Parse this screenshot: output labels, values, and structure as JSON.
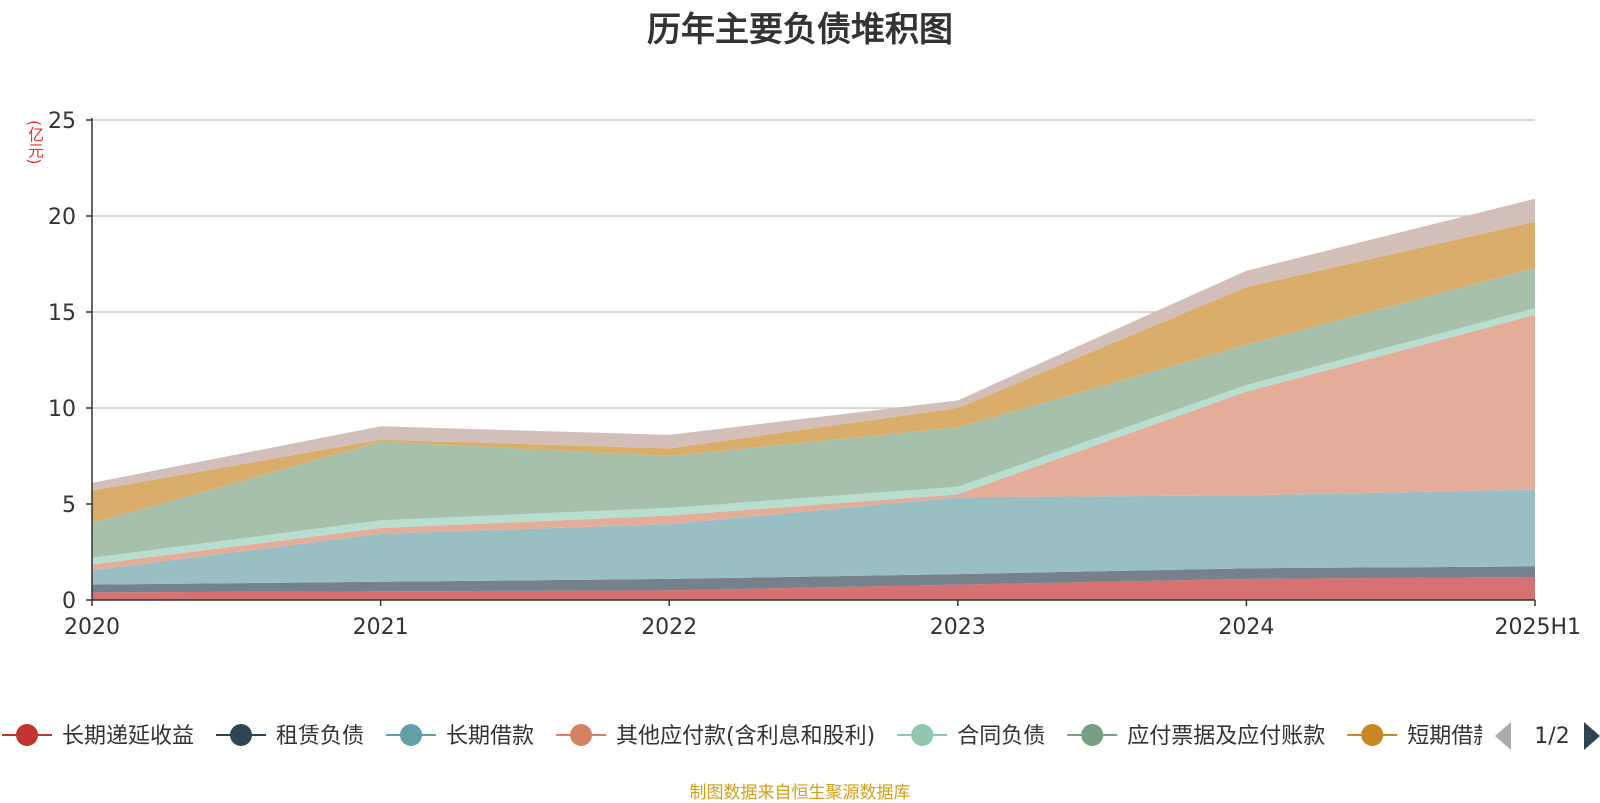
{
  "chart_data": {
    "type": "area",
    "stacked": true,
    "title": "历年主要负债堆积图",
    "ylabel": "(亿元)",
    "xlabel": "",
    "ylim": [
      0,
      25
    ],
    "yticks": [
      0,
      5,
      10,
      15,
      20,
      25
    ],
    "grid": true,
    "categories": [
      "2020",
      "2021",
      "2022",
      "2023",
      "2024",
      "2025H1"
    ],
    "series": [
      {
        "name": "长期递延收益",
        "color": "#c23531",
        "fill": "#d46a6a",
        "values": [
          0.4,
          0.45,
          0.5,
          0.8,
          1.1,
          1.2
        ]
      },
      {
        "name": "租赁负债",
        "color": "#2f4554",
        "fill": "#6e7a85",
        "values": [
          0.4,
          0.5,
          0.6,
          0.55,
          0.55,
          0.55
        ]
      },
      {
        "name": "长期借款",
        "color": "#61a0a8",
        "fill": "#93bcc2",
        "values": [
          0.75,
          2.5,
          2.85,
          4.0,
          3.8,
          4.0
        ]
      },
      {
        "name": "其他应付款(含利息和股利)",
        "color": "#d48265",
        "fill": "#e3a995",
        "values": [
          0.3,
          0.3,
          0.45,
          0.15,
          5.4,
          9.1
        ]
      },
      {
        "name": "合同负债",
        "color": "#91c7ae",
        "fill": "#b3dccb",
        "values": [
          0.35,
          0.4,
          0.4,
          0.4,
          0.35,
          0.35
        ]
      },
      {
        "name": "应付票据及应付账款",
        "color": "#749f83",
        "fill": "#a2bda6",
        "values": [
          1.8,
          4.1,
          2.7,
          3.1,
          2.1,
          2.1
        ]
      },
      {
        "name": "短期借款",
        "color": "#ca8622",
        "fill": "#d9a963",
        "values": [
          1.7,
          0.1,
          0.4,
          1.0,
          3.0,
          2.4
        ]
      },
      {
        "name": "",
        "color": "#bda29a",
        "fill": "#d1bcb6",
        "values": [
          0.4,
          0.7,
          0.7,
          0.4,
          0.85,
          1.2
        ]
      }
    ]
  },
  "legend": {
    "items": [
      {
        "name": "长期递延收益",
        "color": "#c23531"
      },
      {
        "name": "租赁负债",
        "color": "#2f4554"
      },
      {
        "name": "长期借款",
        "color": "#61a0a8"
      },
      {
        "name": "其他应付款(含利息和股利)",
        "color": "#d48265"
      },
      {
        "name": "合同负债",
        "color": "#91c7ae"
      },
      {
        "name": "应付票据及应付账款",
        "color": "#749f83"
      },
      {
        "name": "短期借款",
        "color": "#ca8622"
      }
    ],
    "page_indicator": "1/2"
  },
  "footer": {
    "source": "制图数据来自恒生聚源数据库"
  }
}
